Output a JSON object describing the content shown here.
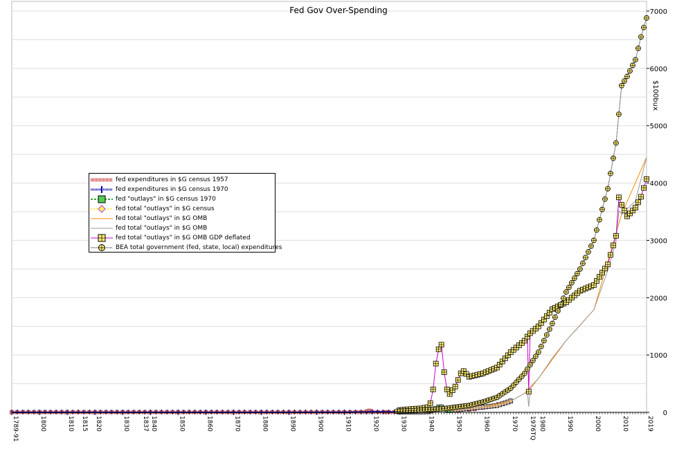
{
  "chart_data": {
    "type": "line",
    "title": "Fed Gov Over-Spending",
    "ylabel": "$100bux",
    "ylim": [
      0,
      7000
    ],
    "yticks": [
      0,
      1000,
      2000,
      3000,
      4000,
      5000,
      6000,
      7000
    ],
    "grid": true,
    "legend_position": "left-middle",
    "x_tick_labels": [
      "1789-91",
      "1800",
      "1810",
      "1815",
      "1820",
      "1830",
      "1837",
      "1840",
      "1850",
      "1860",
      "1870",
      "1880",
      "1890",
      "1900",
      "1910",
      "1920",
      "1930",
      "1940",
      "1950",
      "1960",
      "1970",
      "1976TQ",
      "1980",
      "1990",
      "2000",
      "2010",
      "2019"
    ],
    "x_tick_years": [
      1790,
      1800,
      1810,
      1815,
      1820,
      1830,
      1837,
      1840,
      1850,
      1860,
      1870,
      1880,
      1890,
      1900,
      1910,
      1920,
      1930,
      1940,
      1950,
      1960,
      1970,
      1976.5,
      1980,
      1990,
      2000,
      2010,
      2019
    ],
    "x_range": [
      1790,
      2019
    ],
    "series": [
      {
        "name": "fed expenditures in $G census 1957",
        "color": "#cc3333",
        "marker": "hatched-square",
        "x": [
          1790,
          1800,
          1810,
          1820,
          1830,
          1840,
          1850,
          1860,
          1870,
          1880,
          1890,
          1900,
          1910,
          1918,
          1919,
          1920,
          1925,
          1930,
          1935,
          1940,
          1945,
          1950,
          1955,
          1957
        ],
        "y": [
          0,
          0,
          0,
          0,
          0,
          0,
          0,
          0,
          0,
          0,
          0,
          1,
          1,
          20,
          30,
          10,
          5,
          6,
          10,
          15,
          60,
          60,
          45,
          55
        ]
      },
      {
        "name": "fed expenditures in $G census 1970",
        "color": "#0000aa",
        "marker": "plus-bar",
        "x": [
          1790,
          1800,
          1810,
          1820,
          1830,
          1840,
          1850,
          1860,
          1870,
          1880,
          1890,
          1900,
          1910,
          1920,
          1930,
          1940,
          1945,
          1950,
          1955,
          1960,
          1965,
          1970
        ],
        "y": [
          0,
          0,
          0,
          0,
          0,
          0,
          0,
          0,
          0,
          0,
          0,
          1,
          1,
          10,
          6,
          15,
          90,
          50,
          75,
          95,
          130,
          200
        ]
      },
      {
        "name": "fed \"outlays\" in $G census 1970",
        "color": "#33aa33",
        "marker": "green-square",
        "x": [
          1930,
          1935,
          1940,
          1942,
          1944,
          1945,
          1946,
          1948,
          1950,
          1955,
          1960,
          1965,
          1970
        ],
        "y": [
          3,
          6,
          10,
          35,
          95,
          95,
          60,
          30,
          42,
          68,
          92,
          118,
          196
        ]
      },
      {
        "name": "fed total \"outlays\" in $G census",
        "color": "#ffdd00",
        "marker": "diamond",
        "x": [
          1930,
          1935,
          1940,
          1945,
          1950,
          1955,
          1960,
          1965,
          1970
        ],
        "y": [
          3,
          6,
          10,
          90,
          42,
          68,
          92,
          118,
          196
        ]
      },
      {
        "name": "fed total \"outlays\" in $G OMB",
        "color": "#ff8800",
        "marker": "none",
        "x": [
          1930,
          1940,
          1950,
          1960,
          1970,
          1975,
          1980,
          1990,
          2000,
          2010,
          2019
        ],
        "y": [
          3,
          10,
          42,
          92,
          196,
          332,
          591,
          1253,
          1789,
          3457,
          4447
        ]
      },
      {
        "name": "fed total \"outlays\" in $G OMB",
        "color": "#999999",
        "marker": "none",
        "x": [
          1930,
          1940,
          1945,
          1950,
          1955,
          1960,
          1965,
          1970,
          1975,
          1976,
          1976.5,
          1977,
          1980,
          1985,
          1990,
          1995,
          2000,
          2005,
          2008,
          2009,
          2010,
          2015,
          2019
        ],
        "y": [
          3,
          10,
          90,
          42,
          68,
          92,
          118,
          196,
          332,
          372,
          96,
          409,
          591,
          946,
          1253,
          1516,
          1789,
          2472,
          2983,
          3518,
          3457,
          3688,
          4447
        ]
      },
      {
        "name": "fed total \"outlays\" in $G OMB GDP deflated",
        "color": "#cc00cc",
        "marker": "yellow-square",
        "x": [
          1930,
          1935,
          1938,
          1940,
          1941,
          1942,
          1943,
          1944,
          1945,
          1946,
          1947,
          1948,
          1950,
          1952,
          1953,
          1955,
          1960,
          1965,
          1970,
          1975,
          1976,
          1976.5,
          1977,
          1980,
          1985,
          1990,
          1995,
          2000,
          2005,
          2008,
          2009,
          2010,
          2012,
          2015,
          2017,
          2019
        ],
        "y": [
          40,
          60,
          70,
          90,
          160,
          400,
          850,
          1100,
          1180,
          700,
          400,
          320,
          450,
          680,
          720,
          620,
          680,
          780,
          1050,
          1250,
          1320,
          360,
          1380,
          1500,
          1800,
          1920,
          2120,
          2220,
          2580,
          3080,
          3750,
          3620,
          3420,
          3570,
          3760,
          4070
        ]
      },
      {
        "name": "BEA total government (fed, state, local) expenditures",
        "color": "#000000",
        "marker": "circle-plus",
        "x": [
          1929,
          1935,
          1940,
          1945,
          1950,
          1955,
          1960,
          1965,
          1970,
          1975,
          1980,
          1985,
          1990,
          1995,
          2000,
          2005,
          2008,
          2009,
          2010,
          2012,
          2015,
          2017,
          2019
        ],
        "y": [
          20,
          30,
          50,
          60,
          90,
          120,
          180,
          260,
          420,
          680,
          1050,
          1550,
          2100,
          2500,
          3000,
          3900,
          4700,
          5200,
          5700,
          5860,
          6150,
          6550,
          6880
        ]
      }
    ]
  },
  "legend": [
    {
      "label": "fed expenditures in $G census 1957"
    },
    {
      "label": "fed expenditures in $G census 1970"
    },
    {
      "label": "fed \"outlays\" in $G census 1970"
    },
    {
      "label": "fed total \"outlays\" in $G census"
    },
    {
      "label": "fed total \"outlays\" in $G OMB"
    },
    {
      "label": "fed total \"outlays\" in $G OMB"
    },
    {
      "label": "fed total \"outlays\" in $G OMB GDP deflated"
    },
    {
      "label": "BEA total government (fed, state, local) expenditures"
    }
  ]
}
